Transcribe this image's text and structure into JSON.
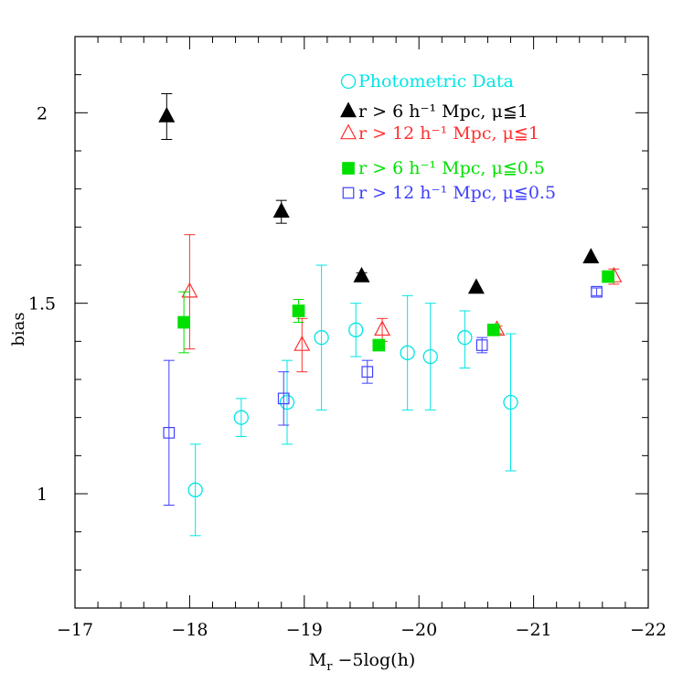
{
  "chart_data": {
    "type": "scatter",
    "xlabel": "M_r −5log(h)",
    "ylabel": "bias",
    "xlim": [
      -17,
      -22
    ],
    "ylim": [
      0.7,
      2.2
    ],
    "x_ticks": [
      -17,
      -18,
      -19,
      -20,
      -21,
      -22
    ],
    "x_tick_labels": [
      "−17",
      "−18",
      "−19",
      "−20",
      "−21",
      "−22"
    ],
    "y_ticks": [
      1,
      1.5,
      2
    ],
    "y_tick_labels": [
      "1",
      "1.5",
      "2"
    ],
    "grid": false,
    "legend_position": "top-right",
    "series": [
      {
        "name": "Photometric Data",
        "marker": "circle-open",
        "color": "#00e5e5",
        "points": [
          {
            "x": -18.05,
            "y": 1.01,
            "ylo": 0.89,
            "yhi": 1.13
          },
          {
            "x": -18.45,
            "y": 1.2,
            "ylo": 1.15,
            "yhi": 1.25
          },
          {
            "x": -18.85,
            "y": 1.24,
            "ylo": 1.13,
            "yhi": 1.35
          },
          {
            "x": -19.15,
            "y": 1.41,
            "ylo": 1.22,
            "yhi": 1.6
          },
          {
            "x": -19.45,
            "y": 1.43,
            "ylo": 1.36,
            "yhi": 1.5
          },
          {
            "x": -19.9,
            "y": 1.37,
            "ylo": 1.22,
            "yhi": 1.52
          },
          {
            "x": -20.1,
            "y": 1.36,
            "ylo": 1.22,
            "yhi": 1.5
          },
          {
            "x": -20.4,
            "y": 1.41,
            "ylo": 1.33,
            "yhi": 1.48
          },
          {
            "x": -20.8,
            "y": 1.24,
            "ylo": 1.06,
            "yhi": 1.42
          }
        ]
      },
      {
        "name": "r > 6 h⁻¹ Mpc, μ≦1",
        "marker": "triangle-filled",
        "color": "#000000",
        "points": [
          {
            "x": -17.8,
            "y": 1.99,
            "ylo": 1.93,
            "yhi": 2.05
          },
          {
            "x": -18.8,
            "y": 1.74,
            "ylo": 1.71,
            "yhi": 1.77
          },
          {
            "x": -19.5,
            "y": 1.57,
            "ylo": 1.56,
            "yhi": 1.58
          },
          {
            "x": -20.5,
            "y": 1.54,
            "ylo": 1.54,
            "yhi": 1.54
          },
          {
            "x": -21.5,
            "y": 1.62,
            "ylo": 1.62,
            "yhi": 1.62
          }
        ]
      },
      {
        "name": "r > 12 h⁻¹ Mpc, μ≦1",
        "marker": "triangle-open",
        "color": "#ff3030",
        "points": [
          {
            "x": -18.0,
            "y": 1.53,
            "ylo": 1.38,
            "yhi": 1.68
          },
          {
            "x": -18.98,
            "y": 1.39,
            "ylo": 1.32,
            "yhi": 1.46
          },
          {
            "x": -19.68,
            "y": 1.43,
            "ylo": 1.4,
            "yhi": 1.46
          },
          {
            "x": -20.68,
            "y": 1.43,
            "ylo": 1.42,
            "yhi": 1.44
          },
          {
            "x": -21.7,
            "y": 1.57,
            "ylo": 1.55,
            "yhi": 1.59
          }
        ]
      },
      {
        "name": "r > 6 h⁻¹ Mpc, μ≦0.5",
        "marker": "square-filled",
        "color": "#00e000",
        "points": [
          {
            "x": -17.95,
            "y": 1.45,
            "ylo": 1.37,
            "yhi": 1.53
          },
          {
            "x": -18.95,
            "y": 1.48,
            "ylo": 1.45,
            "yhi": 1.51
          },
          {
            "x": -19.65,
            "y": 1.39,
            "ylo": 1.38,
            "yhi": 1.4
          },
          {
            "x": -20.65,
            "y": 1.43,
            "ylo": 1.42,
            "yhi": 1.44
          },
          {
            "x": -21.65,
            "y": 1.57,
            "ylo": 1.56,
            "yhi": 1.58
          }
        ]
      },
      {
        "name": "r > 12 h⁻¹ Mpc, μ≦0.5",
        "marker": "square-open",
        "color": "#4040ff",
        "points": [
          {
            "x": -17.82,
            "y": 1.16,
            "ylo": 0.97,
            "yhi": 1.35
          },
          {
            "x": -18.82,
            "y": 1.25,
            "ylo": 1.18,
            "yhi": 1.32
          },
          {
            "x": -19.55,
            "y": 1.32,
            "ylo": 1.29,
            "yhi": 1.35
          },
          {
            "x": -20.55,
            "y": 1.39,
            "ylo": 1.37,
            "yhi": 1.41
          },
          {
            "x": -21.55,
            "y": 1.53,
            "ylo": 1.52,
            "yhi": 1.54
          }
        ]
      }
    ]
  }
}
